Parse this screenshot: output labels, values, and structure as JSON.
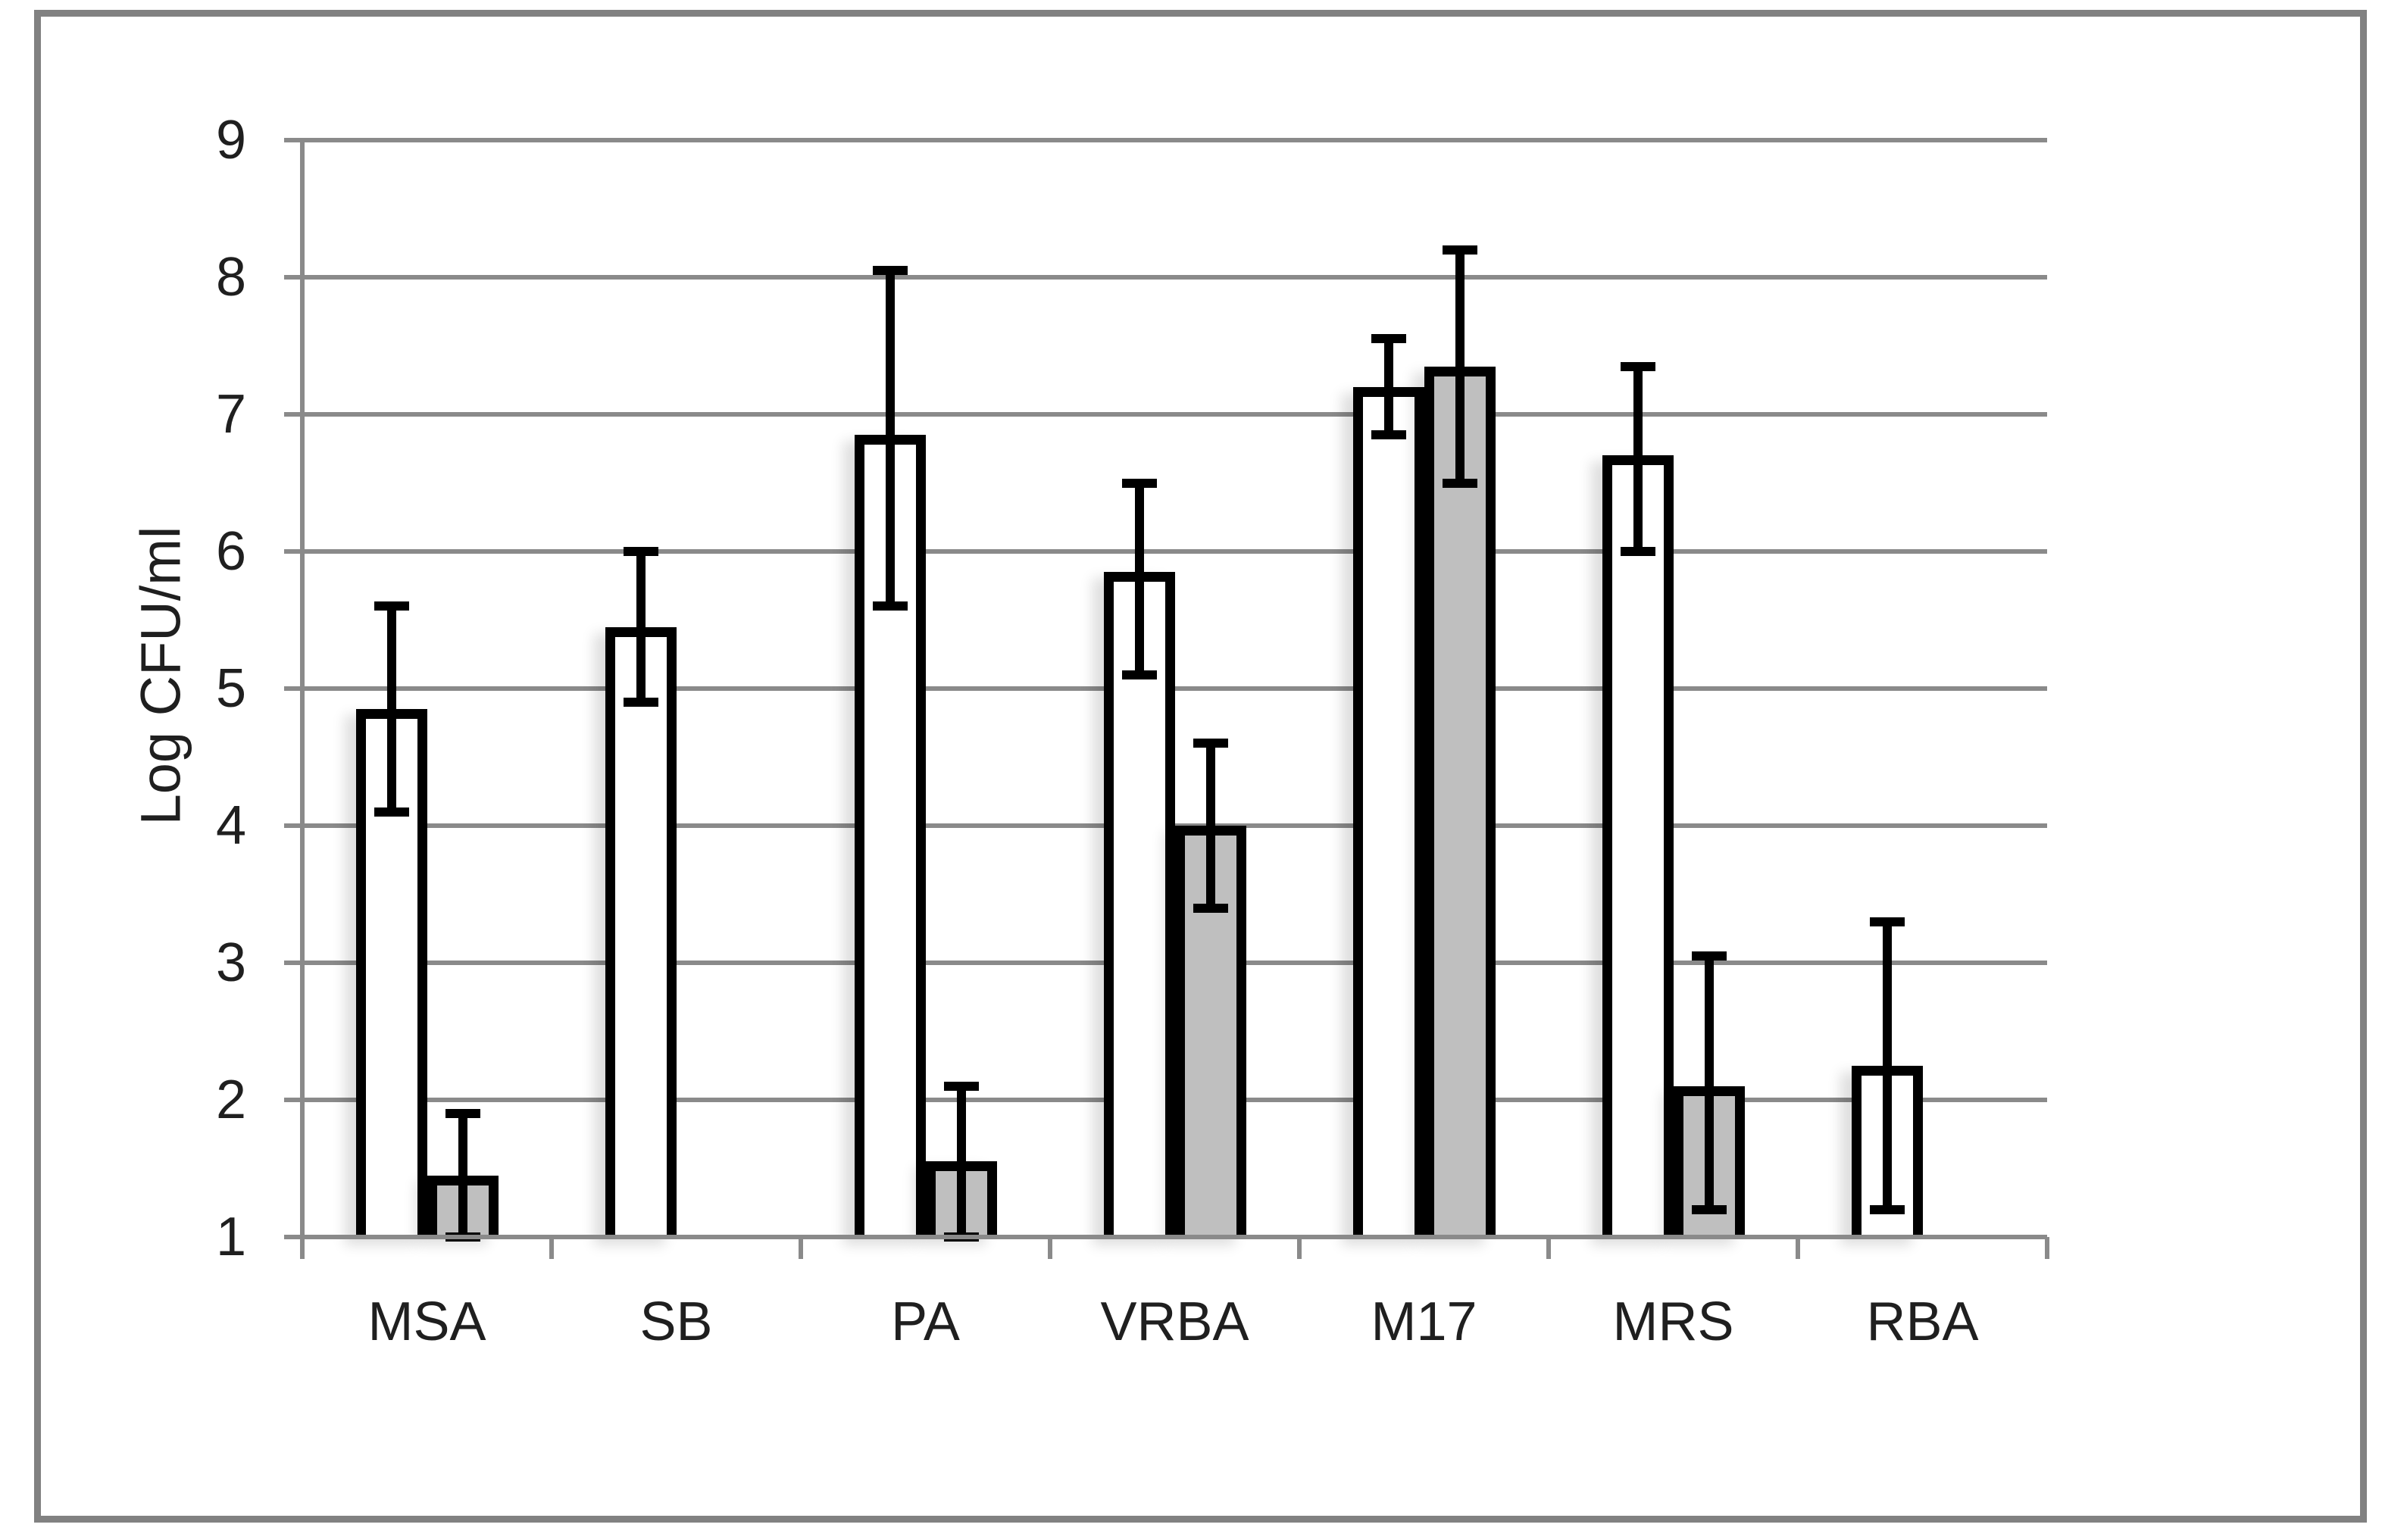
{
  "figure": {
    "type": "statistical-bar-figure",
    "background": "#ffffff",
    "border_color": "#818181",
    "text_color": "#1f1f1f",
    "gridline_color": "#8a8a8a",
    "bar_outline_color": "#000000"
  },
  "chart_data": {
    "type": "bar",
    "title": "",
    "xlabel": "",
    "ylabel": "Log CFU/ml",
    "ylim": [
      1,
      9
    ],
    "yticks": [
      1,
      2,
      3,
      4,
      5,
      6,
      7,
      8,
      9
    ],
    "grid": true,
    "legend": "none",
    "error_bars": true,
    "categories": [
      "MSA",
      "SB",
      "PA",
      "VRBA",
      "M17",
      "MRS",
      "RBA"
    ],
    "series": [
      {
        "name": "white-bars",
        "fill": "#ffffff",
        "values": [
          4.85,
          5.45,
          6.85,
          5.85,
          7.2,
          6.7,
          2.25
        ],
        "error_low": [
          4.1,
          4.9,
          5.6,
          5.1,
          6.85,
          6.0,
          1.2
        ],
        "error_high": [
          5.6,
          6.0,
          8.05,
          6.5,
          7.55,
          7.35,
          3.3
        ]
      },
      {
        "name": "gray-bars",
        "fill": "#bfbfbf",
        "values": [
          1.45,
          null,
          1.55,
          4.0,
          7.35,
          2.1,
          null
        ],
        "error_low": [
          1.0,
          null,
          1.0,
          3.4,
          6.5,
          1.2,
          null
        ],
        "error_high": [
          1.9,
          null,
          2.1,
          4.6,
          8.2,
          3.05,
          null
        ]
      }
    ]
  }
}
